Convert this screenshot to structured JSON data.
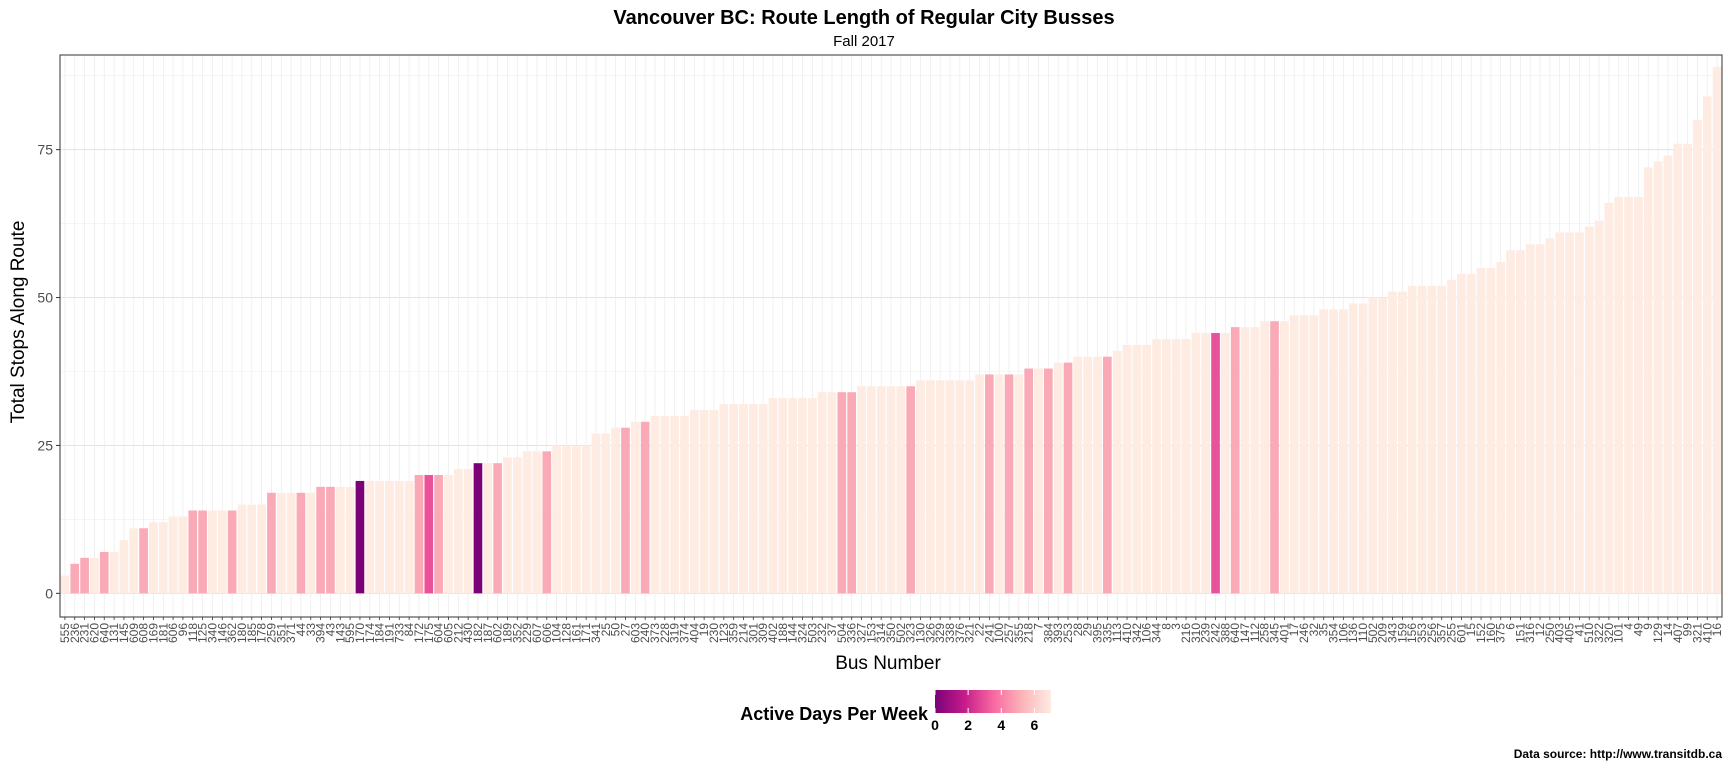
{
  "chart_data": {
    "type": "bar",
    "title": "Vancouver BC: Route Length of Regular City Busses",
    "subtitle": "Fall 2017",
    "xlabel": "Bus Number",
    "ylabel": "Total Stops Along Route",
    "ylim": [
      0,
      90
    ],
    "y_ticks": [
      0,
      25,
      50,
      75
    ],
    "grid": true,
    "legend": {
      "title": "Active Days Per Week",
      "placement": "bottom",
      "ticks": [
        0,
        2,
        4,
        6
      ],
      "range": [
        0,
        7
      ],
      "colors": [
        "#7a0177",
        "#c51b8a",
        "#f768a1",
        "#fbb4b9",
        "#feebe2"
      ]
    },
    "caption": "Data source: http://www.transitdb.ca",
    "bars": [
      {
        "label": "555",
        "value": 3,
        "days": 7
      },
      {
        "label": "236",
        "value": 5,
        "days": 5
      },
      {
        "label": "231",
        "value": 6,
        "days": 5
      },
      {
        "label": "620",
        "value": 6,
        "days": 7
      },
      {
        "label": "640",
        "value": 7,
        "days": 5
      },
      {
        "label": "131",
        "value": 7,
        "days": 7
      },
      {
        "label": "145",
        "value": 9,
        "days": 7
      },
      {
        "label": "609",
        "value": 11,
        "days": 7
      },
      {
        "label": "608",
        "value": 11,
        "days": 5
      },
      {
        "label": "169",
        "value": 12,
        "days": 7
      },
      {
        "label": "181",
        "value": 12,
        "days": 7
      },
      {
        "label": "606",
        "value": 13,
        "days": 7
      },
      {
        "label": "96",
        "value": 13,
        "days": 7
      },
      {
        "label": "118",
        "value": 14,
        "days": 5
      },
      {
        "label": "125",
        "value": 14,
        "days": 5
      },
      {
        "label": "340",
        "value": 14,
        "days": 7
      },
      {
        "label": "146",
        "value": 14,
        "days": 7
      },
      {
        "label": "362",
        "value": 14,
        "days": 5
      },
      {
        "label": "180",
        "value": 15,
        "days": 7
      },
      {
        "label": "185",
        "value": 15,
        "days": 7
      },
      {
        "label": "178",
        "value": 15,
        "days": 7
      },
      {
        "label": "259",
        "value": 17,
        "days": 5
      },
      {
        "label": "351",
        "value": 17,
        "days": 7
      },
      {
        "label": "371",
        "value": 17,
        "days": 7
      },
      {
        "label": "44",
        "value": 17,
        "days": 5
      },
      {
        "label": "33",
        "value": 17,
        "days": 7
      },
      {
        "label": "394",
        "value": 18,
        "days": 5
      },
      {
        "label": "43",
        "value": 18,
        "days": 5
      },
      {
        "label": "143",
        "value": 18,
        "days": 7
      },
      {
        "label": "595",
        "value": 18,
        "days": 7
      },
      {
        "label": "170",
        "value": 19,
        "days": 0
      },
      {
        "label": "174",
        "value": 19,
        "days": 7
      },
      {
        "label": "184",
        "value": 19,
        "days": 7
      },
      {
        "label": "191",
        "value": 19,
        "days": 7
      },
      {
        "label": "733",
        "value": 19,
        "days": 7
      },
      {
        "label": "84",
        "value": 19,
        "days": 7
      },
      {
        "label": "172",
        "value": 20,
        "days": 5
      },
      {
        "label": "175",
        "value": 20,
        "days": 3
      },
      {
        "label": "604",
        "value": 20,
        "days": 5
      },
      {
        "label": "605",
        "value": 20,
        "days": 7
      },
      {
        "label": "212",
        "value": 21,
        "days": 7
      },
      {
        "label": "430",
        "value": 21,
        "days": 7
      },
      {
        "label": "182",
        "value": 22,
        "days": 0
      },
      {
        "label": "187",
        "value": 22,
        "days": 7
      },
      {
        "label": "602",
        "value": 22,
        "days": 5
      },
      {
        "label": "189",
        "value": 23,
        "days": 7
      },
      {
        "label": "352",
        "value": 23,
        "days": 7
      },
      {
        "label": "229",
        "value": 24,
        "days": 7
      },
      {
        "label": "607",
        "value": 24,
        "days": 7
      },
      {
        "label": "606b",
        "value": 24,
        "days": 5
      },
      {
        "label": "104",
        "value": 25,
        "days": 7
      },
      {
        "label": "128",
        "value": 25,
        "days": 7
      },
      {
        "label": "161",
        "value": 25,
        "days": 7
      },
      {
        "label": "171",
        "value": 25,
        "days": 7
      },
      {
        "label": "341",
        "value": 27,
        "days": 7
      },
      {
        "label": "25",
        "value": 27,
        "days": 7
      },
      {
        "label": "50",
        "value": 28,
        "days": 7
      },
      {
        "label": "27",
        "value": 28,
        "days": 5
      },
      {
        "label": "603",
        "value": 29,
        "days": 7
      },
      {
        "label": "240",
        "value": 29,
        "days": 5
      },
      {
        "label": "373",
        "value": 30,
        "days": 7
      },
      {
        "label": "228",
        "value": 30,
        "days": 7
      },
      {
        "label": "319",
        "value": 30,
        "days": 7
      },
      {
        "label": "374",
        "value": 30,
        "days": 7
      },
      {
        "label": "404",
        "value": 31,
        "days": 7
      },
      {
        "label": "19",
        "value": 31,
        "days": 7
      },
      {
        "label": "230",
        "value": 31,
        "days": 7
      },
      {
        "label": "123",
        "value": 32,
        "days": 7
      },
      {
        "label": "359",
        "value": 32,
        "days": 7
      },
      {
        "label": "214",
        "value": 32,
        "days": 7
      },
      {
        "label": "301",
        "value": 32,
        "days": 7
      },
      {
        "label": "309",
        "value": 32,
        "days": 7
      },
      {
        "label": "402",
        "value": 33,
        "days": 7
      },
      {
        "label": "188",
        "value": 33,
        "days": 7
      },
      {
        "label": "144",
        "value": 33,
        "days": 7
      },
      {
        "label": "324",
        "value": 33,
        "days": 7
      },
      {
        "label": "503",
        "value": 33,
        "days": 7
      },
      {
        "label": "232",
        "value": 34,
        "days": 7
      },
      {
        "label": "37",
        "value": 34,
        "days": 7
      },
      {
        "label": "504",
        "value": 34,
        "days": 5
      },
      {
        "label": "336",
        "value": 34,
        "days": 5
      },
      {
        "label": "327",
        "value": 35,
        "days": 7
      },
      {
        "label": "153",
        "value": 35,
        "days": 7
      },
      {
        "label": "314",
        "value": 35,
        "days": 7
      },
      {
        "label": "350",
        "value": 35,
        "days": 7
      },
      {
        "label": "502",
        "value": 35,
        "days": 7
      },
      {
        "label": "323",
        "value": 35,
        "days": 5
      },
      {
        "label": "130",
        "value": 36,
        "days": 7
      },
      {
        "label": "326",
        "value": 36,
        "days": 7
      },
      {
        "label": "329",
        "value": 36,
        "days": 7
      },
      {
        "label": "338",
        "value": 36,
        "days": 7
      },
      {
        "label": "376",
        "value": 36,
        "days": 7
      },
      {
        "label": "321",
        "value": 36,
        "days": 7
      },
      {
        "label": "22",
        "value": 37,
        "days": 7
      },
      {
        "label": "241",
        "value": 37,
        "days": 5
      },
      {
        "label": "100",
        "value": 37,
        "days": 7
      },
      {
        "label": "257",
        "value": 37,
        "days": 5
      },
      {
        "label": "355",
        "value": 37,
        "days": 7
      },
      {
        "label": "218",
        "value": 38,
        "days": 5
      },
      {
        "label": "7",
        "value": 38,
        "days": 7
      },
      {
        "label": "384",
        "value": 38,
        "days": 5
      },
      {
        "label": "393",
        "value": 39,
        "days": 7
      },
      {
        "label": "253",
        "value": 39,
        "days": 5
      },
      {
        "label": "28",
        "value": 40,
        "days": 7
      },
      {
        "label": "29",
        "value": 40,
        "days": 7
      },
      {
        "label": "395",
        "value": 40,
        "days": 7
      },
      {
        "label": "335",
        "value": 40,
        "days": 5
      },
      {
        "label": "113",
        "value": 41,
        "days": 7
      },
      {
        "label": "410b",
        "value": 42,
        "days": 7
      },
      {
        "label": "342",
        "value": 42,
        "days": 7
      },
      {
        "label": "106",
        "value": 42,
        "days": 7
      },
      {
        "label": "344",
        "value": 43,
        "days": 7
      },
      {
        "label": "8",
        "value": 43,
        "days": 7
      },
      {
        "label": "3",
        "value": 43,
        "days": 7
      },
      {
        "label": "216",
        "value": 43,
        "days": 7
      },
      {
        "label": "310",
        "value": 44,
        "days": 7
      },
      {
        "label": "239",
        "value": 44,
        "days": 7
      },
      {
        "label": "242",
        "value": 44,
        "days": 3
      },
      {
        "label": "388",
        "value": 44,
        "days": 7
      },
      {
        "label": "640b",
        "value": 45,
        "days": 5
      },
      {
        "label": "147",
        "value": 45,
        "days": 7
      },
      {
        "label": "112",
        "value": 45,
        "days": 7
      },
      {
        "label": "258",
        "value": 46,
        "days": 7
      },
      {
        "label": "345",
        "value": 46,
        "days": 5
      },
      {
        "label": "401",
        "value": 46,
        "days": 7
      },
      {
        "label": "17",
        "value": 47,
        "days": 7
      },
      {
        "label": "246",
        "value": 47,
        "days": 7
      },
      {
        "label": "32",
        "value": 47,
        "days": 7
      },
      {
        "label": "35",
        "value": 48,
        "days": 7
      },
      {
        "label": "354",
        "value": 48,
        "days": 7
      },
      {
        "label": "106b",
        "value": 48,
        "days": 7
      },
      {
        "label": "136",
        "value": 49,
        "days": 7
      },
      {
        "label": "110",
        "value": 49,
        "days": 7
      },
      {
        "label": "502b",
        "value": 50,
        "days": 7
      },
      {
        "label": "209",
        "value": 50,
        "days": 7
      },
      {
        "label": "343",
        "value": 51,
        "days": 7
      },
      {
        "label": "159",
        "value": 51,
        "days": 7
      },
      {
        "label": "156",
        "value": 52,
        "days": 7
      },
      {
        "label": "353",
        "value": 52,
        "days": 7
      },
      {
        "label": "256",
        "value": 52,
        "days": 7
      },
      {
        "label": "357",
        "value": 52,
        "days": 7
      },
      {
        "label": "255",
        "value": 53,
        "days": 7
      },
      {
        "label": "601",
        "value": 54,
        "days": 7
      },
      {
        "label": "15",
        "value": 54,
        "days": 7
      },
      {
        "label": "152",
        "value": 55,
        "days": 7
      },
      {
        "label": "160",
        "value": 55,
        "days": 7
      },
      {
        "label": "375",
        "value": 56,
        "days": 7
      },
      {
        "label": "6",
        "value": 58,
        "days": 7
      },
      {
        "label": "151",
        "value": 58,
        "days": 7
      },
      {
        "label": "316",
        "value": 59,
        "days": 7
      },
      {
        "label": "12",
        "value": 59,
        "days": 7
      },
      {
        "label": "250",
        "value": 60,
        "days": 7
      },
      {
        "label": "403",
        "value": 61,
        "days": 7
      },
      {
        "label": "405",
        "value": 61,
        "days": 7
      },
      {
        "label": "41",
        "value": 61,
        "days": 7
      },
      {
        "label": "510",
        "value": 62,
        "days": 7
      },
      {
        "label": "322",
        "value": 63,
        "days": 7
      },
      {
        "label": "320",
        "value": 66,
        "days": 7
      },
      {
        "label": "101",
        "value": 67,
        "days": 7
      },
      {
        "label": "4",
        "value": 67,
        "days": 7
      },
      {
        "label": "49",
        "value": 67,
        "days": 7
      },
      {
        "label": "9",
        "value": 72,
        "days": 7
      },
      {
        "label": "129",
        "value": 73,
        "days": 7
      },
      {
        "label": "14",
        "value": 74,
        "days": 7
      },
      {
        "label": "407",
        "value": 76,
        "days": 7
      },
      {
        "label": "99",
        "value": 76,
        "days": 7
      },
      {
        "label": "321b",
        "value": 80,
        "days": 7
      },
      {
        "label": "410",
        "value": 84,
        "days": 7
      },
      {
        "label": "16",
        "value": 89,
        "days": 7
      }
    ]
  }
}
